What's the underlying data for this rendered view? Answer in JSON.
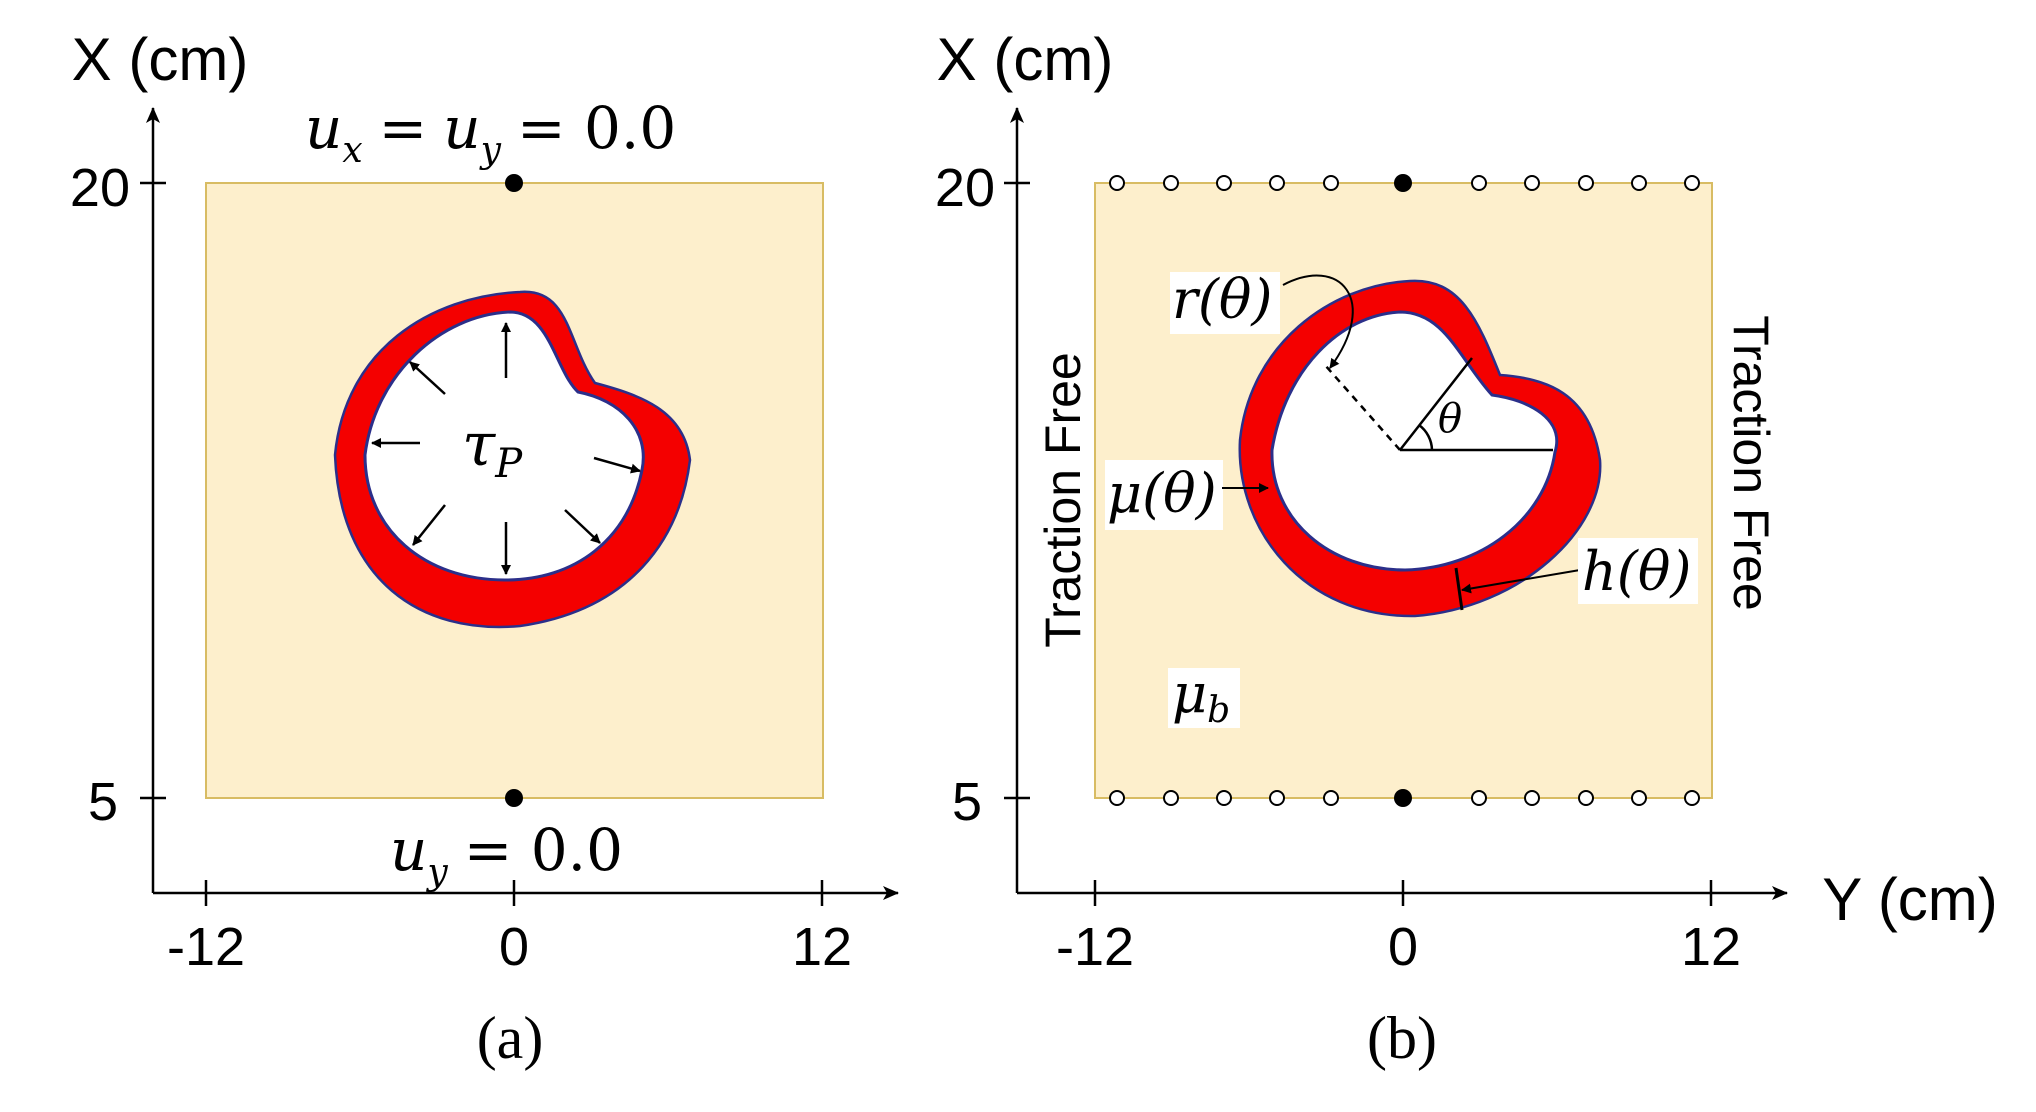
{
  "colors": {
    "domain_fill": "#fdefcc",
    "domain_stroke": "#d8bc63",
    "wall_fill": "#f40000",
    "wall_edge": "#2b2f8a",
    "lumen_fill": "#ffffff",
    "axis": "#000000",
    "label_bg": "#ffffff"
  },
  "panel_a": {
    "caption": "(a)",
    "x_axis_title": "X (cm)",
    "tick_20": "20",
    "tick_5": "5",
    "tick_m12": "-12",
    "tick_0": "0",
    "tick_12": "12",
    "top_bc": "= 0.0",
    "top_bc_ux": "u",
    "top_bc_ux_sub": "x",
    "top_bc_eq": "=",
    "top_bc_uy": "u",
    "top_bc_uy_sub": "y",
    "bottom_bc_u": "u",
    "bottom_bc_sub": "y",
    "bottom_bc_rest": "= 0.0",
    "pressure_sym": "τ",
    "pressure_sub": "P"
  },
  "panel_b": {
    "caption": "(b)",
    "x_axis_title": "X (cm)",
    "y_axis_title": "Y (cm)",
    "tick_20": "20",
    "tick_5": "5",
    "tick_m12": "-12",
    "tick_0": "0",
    "tick_12": "12",
    "left_bc": "Traction Free",
    "right_bc": "Traction Free",
    "r_label": "r(θ)",
    "theta_label": "θ",
    "mu_label": "μ(θ)",
    "h_label": "h(θ)",
    "mub_sym": "μ",
    "mub_sub": "b"
  }
}
